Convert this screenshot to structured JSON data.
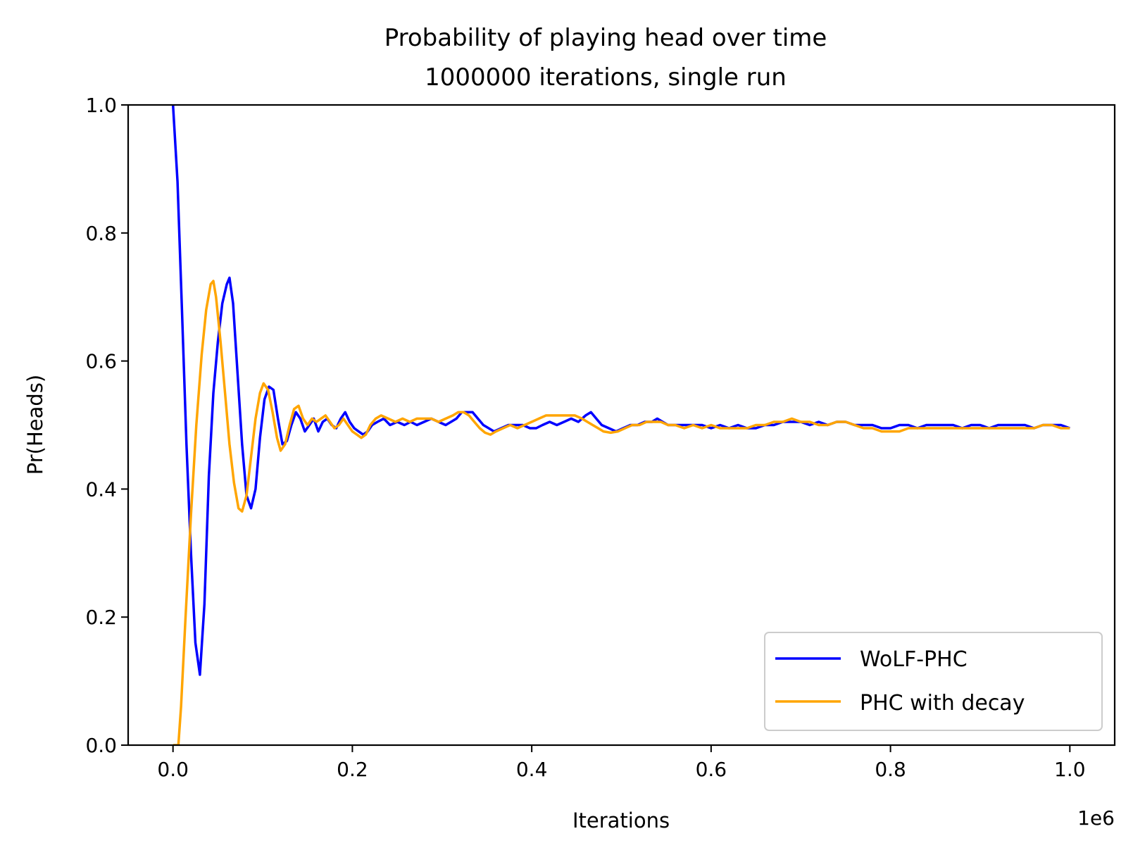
{
  "chart_data": {
    "type": "line",
    "title": "Probability of playing head over time",
    "subtitle": "1000000 iterations, single run",
    "xlabel": "Iterations",
    "ylabel": "Pr(Heads)",
    "x_offset_label": "1e6",
    "xlim": [
      -50000,
      1050000
    ],
    "ylim": [
      0,
      1
    ],
    "x_ticks": [
      0,
      200000,
      400000,
      600000,
      800000,
      1000000
    ],
    "x_tick_labels": [
      "0.0",
      "0.2",
      "0.4",
      "0.6",
      "0.8",
      "1.0"
    ],
    "y_ticks": [
      0,
      0.2,
      0.4,
      0.6,
      0.8,
      1.0
    ],
    "y_tick_labels": [
      "0.0",
      "0.2",
      "0.4",
      "0.6",
      "0.8",
      "1.0"
    ],
    "grid": false,
    "legend_position": "lower-right",
    "series": [
      {
        "name": "WoLF-PHC",
        "color": "#0000ff",
        "points": [
          [
            0,
            1.0
          ],
          [
            5000,
            0.88
          ],
          [
            10000,
            0.68
          ],
          [
            15000,
            0.47
          ],
          [
            20000,
            0.3
          ],
          [
            25000,
            0.16
          ],
          [
            30000,
            0.11
          ],
          [
            35000,
            0.22
          ],
          [
            40000,
            0.42
          ],
          [
            45000,
            0.55
          ],
          [
            50000,
            0.63
          ],
          [
            55000,
            0.69
          ],
          [
            60000,
            0.72
          ],
          [
            63000,
            0.73
          ],
          [
            67000,
            0.69
          ],
          [
            72000,
            0.58
          ],
          [
            77000,
            0.47
          ],
          [
            82000,
            0.39
          ],
          [
            87000,
            0.37
          ],
          [
            92000,
            0.4
          ],
          [
            97000,
            0.48
          ],
          [
            102000,
            0.54
          ],
          [
            107000,
            0.56
          ],
          [
            112000,
            0.555
          ],
          [
            117000,
            0.51
          ],
          [
            122000,
            0.47
          ],
          [
            127000,
            0.475
          ],
          [
            132000,
            0.5
          ],
          [
            137000,
            0.52
          ],
          [
            142000,
            0.51
          ],
          [
            147000,
            0.49
          ],
          [
            152000,
            0.5
          ],
          [
            157000,
            0.51
          ],
          [
            162000,
            0.49
          ],
          [
            167000,
            0.505
          ],
          [
            172000,
            0.51
          ],
          [
            177000,
            0.5
          ],
          [
            182000,
            0.495
          ],
          [
            187000,
            0.51
          ],
          [
            192000,
            0.52
          ],
          [
            197000,
            0.505
          ],
          [
            202000,
            0.495
          ],
          [
            207000,
            0.49
          ],
          [
            212000,
            0.485
          ],
          [
            217000,
            0.49
          ],
          [
            222000,
            0.5
          ],
          [
            228000,
            0.505
          ],
          [
            235000,
            0.51
          ],
          [
            242000,
            0.5
          ],
          [
            250000,
            0.505
          ],
          [
            258000,
            0.5
          ],
          [
            265000,
            0.505
          ],
          [
            272000,
            0.5
          ],
          [
            280000,
            0.505
          ],
          [
            288000,
            0.51
          ],
          [
            296000,
            0.505
          ],
          [
            304000,
            0.5
          ],
          [
            310000,
            0.505
          ],
          [
            316000,
            0.51
          ],
          [
            322000,
            0.52
          ],
          [
            328000,
            0.52
          ],
          [
            334000,
            0.52
          ],
          [
            340000,
            0.51
          ],
          [
            346000,
            0.5
          ],
          [
            352000,
            0.495
          ],
          [
            358000,
            0.49
          ],
          [
            366000,
            0.495
          ],
          [
            374000,
            0.5
          ],
          [
            382000,
            0.5
          ],
          [
            390000,
            0.5
          ],
          [
            398000,
            0.495
          ],
          [
            405000,
            0.495
          ],
          [
            412000,
            0.5
          ],
          [
            420000,
            0.505
          ],
          [
            428000,
            0.5
          ],
          [
            436000,
            0.505
          ],
          [
            444000,
            0.51
          ],
          [
            452000,
            0.505
          ],
          [
            460000,
            0.515
          ],
          [
            466000,
            0.52
          ],
          [
            472000,
            0.51
          ],
          [
            478000,
            0.5
          ],
          [
            486000,
            0.495
          ],
          [
            494000,
            0.49
          ],
          [
            502000,
            0.495
          ],
          [
            510000,
            0.5
          ],
          [
            518000,
            0.5
          ],
          [
            526000,
            0.505
          ],
          [
            534000,
            0.505
          ],
          [
            540000,
            0.51
          ],
          [
            546000,
            0.505
          ],
          [
            552000,
            0.5
          ],
          [
            560000,
            0.5
          ],
          [
            570000,
            0.5
          ],
          [
            580000,
            0.5
          ],
          [
            590000,
            0.5
          ],
          [
            600000,
            0.495
          ],
          [
            610000,
            0.5
          ],
          [
            620000,
            0.495
          ],
          [
            630000,
            0.5
          ],
          [
            640000,
            0.495
          ],
          [
            650000,
            0.495
          ],
          [
            660000,
            0.5
          ],
          [
            670000,
            0.5
          ],
          [
            680000,
            0.505
          ],
          [
            690000,
            0.505
          ],
          [
            700000,
            0.505
          ],
          [
            710000,
            0.5
          ],
          [
            720000,
            0.505
          ],
          [
            730000,
            0.5
          ],
          [
            740000,
            0.505
          ],
          [
            750000,
            0.505
          ],
          [
            760000,
            0.5
          ],
          [
            770000,
            0.5
          ],
          [
            780000,
            0.5
          ],
          [
            790000,
            0.495
          ],
          [
            800000,
            0.495
          ],
          [
            810000,
            0.5
          ],
          [
            820000,
            0.5
          ],
          [
            830000,
            0.495
          ],
          [
            840000,
            0.5
          ],
          [
            850000,
            0.5
          ],
          [
            860000,
            0.5
          ],
          [
            870000,
            0.5
          ],
          [
            880000,
            0.495
          ],
          [
            890000,
            0.5
          ],
          [
            900000,
            0.5
          ],
          [
            910000,
            0.495
          ],
          [
            920000,
            0.5
          ],
          [
            930000,
            0.5
          ],
          [
            940000,
            0.5
          ],
          [
            950000,
            0.5
          ],
          [
            960000,
            0.495
          ],
          [
            970000,
            0.5
          ],
          [
            980000,
            0.5
          ],
          [
            990000,
            0.5
          ],
          [
            1000000,
            0.495
          ]
        ]
      },
      {
        "name": "PHC with decay",
        "color": "#ffa500",
        "points": [
          [
            0,
            0.0
          ],
          [
            6000,
            0.0
          ],
          [
            9000,
            0.06
          ],
          [
            14000,
            0.2
          ],
          [
            20000,
            0.36
          ],
          [
            26000,
            0.5
          ],
          [
            32000,
            0.61
          ],
          [
            37000,
            0.68
          ],
          [
            42000,
            0.72
          ],
          [
            45000,
            0.725
          ],
          [
            48000,
            0.7
          ],
          [
            53000,
            0.63
          ],
          [
            58000,
            0.55
          ],
          [
            63000,
            0.47
          ],
          [
            68000,
            0.41
          ],
          [
            73000,
            0.37
          ],
          [
            77000,
            0.365
          ],
          [
            82000,
            0.39
          ],
          [
            87000,
            0.45
          ],
          [
            92000,
            0.51
          ],
          [
            97000,
            0.55
          ],
          [
            101000,
            0.565
          ],
          [
            106000,
            0.555
          ],
          [
            111000,
            0.52
          ],
          [
            116000,
            0.48
          ],
          [
            120000,
            0.46
          ],
          [
            125000,
            0.47
          ],
          [
            130000,
            0.5
          ],
          [
            135000,
            0.525
          ],
          [
            140000,
            0.53
          ],
          [
            145000,
            0.51
          ],
          [
            150000,
            0.5
          ],
          [
            155000,
            0.51
          ],
          [
            160000,
            0.505
          ],
          [
            165000,
            0.51
          ],
          [
            170000,
            0.515
          ],
          [
            175000,
            0.505
          ],
          [
            180000,
            0.495
          ],
          [
            185000,
            0.5
          ],
          [
            190000,
            0.51
          ],
          [
            195000,
            0.5
          ],
          [
            200000,
            0.49
          ],
          [
            205000,
            0.485
          ],
          [
            210000,
            0.48
          ],
          [
            215000,
            0.485
          ],
          [
            220000,
            0.5
          ],
          [
            226000,
            0.51
          ],
          [
            232000,
            0.515
          ],
          [
            240000,
            0.51
          ],
          [
            248000,
            0.505
          ],
          [
            256000,
            0.51
          ],
          [
            264000,
            0.505
          ],
          [
            272000,
            0.51
          ],
          [
            280000,
            0.51
          ],
          [
            288000,
            0.51
          ],
          [
            296000,
            0.505
          ],
          [
            304000,
            0.51
          ],
          [
            312000,
            0.515
          ],
          [
            318000,
            0.52
          ],
          [
            324000,
            0.52
          ],
          [
            330000,
            0.515
          ],
          [
            336000,
            0.505
          ],
          [
            342000,
            0.495
          ],
          [
            348000,
            0.488
          ],
          [
            354000,
            0.485
          ],
          [
            360000,
            0.49
          ],
          [
            368000,
            0.495
          ],
          [
            376000,
            0.5
          ],
          [
            384000,
            0.495
          ],
          [
            392000,
            0.5
          ],
          [
            400000,
            0.505
          ],
          [
            408000,
            0.51
          ],
          [
            416000,
            0.515
          ],
          [
            424000,
            0.515
          ],
          [
            432000,
            0.515
          ],
          [
            440000,
            0.515
          ],
          [
            448000,
            0.515
          ],
          [
            456000,
            0.51
          ],
          [
            462000,
            0.505
          ],
          [
            468000,
            0.5
          ],
          [
            474000,
            0.495
          ],
          [
            480000,
            0.49
          ],
          [
            488000,
            0.488
          ],
          [
            496000,
            0.49
          ],
          [
            504000,
            0.495
          ],
          [
            512000,
            0.5
          ],
          [
            520000,
            0.5
          ],
          [
            528000,
            0.505
          ],
          [
            536000,
            0.505
          ],
          [
            544000,
            0.505
          ],
          [
            552000,
            0.5
          ],
          [
            560000,
            0.5
          ],
          [
            570000,
            0.495
          ],
          [
            580000,
            0.5
          ],
          [
            590000,
            0.495
          ],
          [
            600000,
            0.5
          ],
          [
            610000,
            0.495
          ],
          [
            620000,
            0.495
          ],
          [
            630000,
            0.495
          ],
          [
            640000,
            0.495
          ],
          [
            650000,
            0.5
          ],
          [
            660000,
            0.5
          ],
          [
            670000,
            0.505
          ],
          [
            680000,
            0.505
          ],
          [
            690000,
            0.51
          ],
          [
            700000,
            0.505
          ],
          [
            710000,
            0.505
          ],
          [
            720000,
            0.5
          ],
          [
            730000,
            0.5
          ],
          [
            740000,
            0.505
          ],
          [
            750000,
            0.505
          ],
          [
            760000,
            0.5
          ],
          [
            770000,
            0.495
          ],
          [
            780000,
            0.495
          ],
          [
            790000,
            0.49
          ],
          [
            800000,
            0.49
          ],
          [
            810000,
            0.49
          ],
          [
            820000,
            0.495
          ],
          [
            830000,
            0.495
          ],
          [
            840000,
            0.495
          ],
          [
            850000,
            0.495
          ],
          [
            860000,
            0.495
          ],
          [
            870000,
            0.495
          ],
          [
            880000,
            0.495
          ],
          [
            890000,
            0.495
          ],
          [
            900000,
            0.495
          ],
          [
            910000,
            0.495
          ],
          [
            920000,
            0.495
          ],
          [
            930000,
            0.495
          ],
          [
            940000,
            0.495
          ],
          [
            950000,
            0.495
          ],
          [
            960000,
            0.495
          ],
          [
            970000,
            0.5
          ],
          [
            980000,
            0.5
          ],
          [
            990000,
            0.495
          ],
          [
            1000000,
            0.495
          ]
        ]
      }
    ]
  }
}
